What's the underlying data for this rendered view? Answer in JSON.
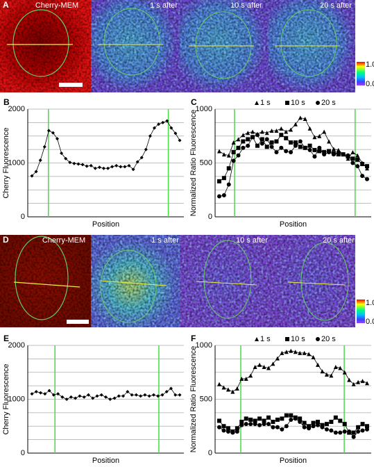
{
  "images": [
    {
      "label": "A",
      "captions": [
        "Cherry-MEM",
        "1 s after",
        "10 s after",
        "20 s after"
      ],
      "colorbar_labels": [
        "1.0",
        "0.0"
      ]
    },
    {
      "label": "D",
      "captions": [
        "Cherry-MEM",
        "1 s after",
        "10 s after",
        "20 s after"
      ],
      "colorbar_labels": [
        "1.0",
        "0.0"
      ]
    }
  ],
  "chart_data": [
    {
      "panel_label": "B",
      "type": "line",
      "ylabel": "Cherry Fluorescence",
      "xlabel": "Position",
      "ylim": [
        0,
        2000
      ],
      "yticks": [
        0,
        1000,
        2000
      ],
      "minor_yticks": [
        250,
        500,
        750,
        1250,
        1500,
        1750
      ],
      "grid": true,
      "boundary_positions": [
        3.9,
        32.3
      ],
      "boundary_color": "#44dd44",
      "series": [
        {
          "color": "#000000",
          "marker": "diamond",
          "values": [
            760,
            840,
            1050,
            1300,
            1600,
            1560,
            1450,
            1180,
            1080,
            1010,
            990,
            980,
            970,
            940,
            950,
            900,
            920,
            900,
            900,
            930,
            950,
            930,
            930,
            950,
            880,
            1020,
            1100,
            1250,
            1500,
            1650,
            1720,
            1750,
            1780,
            1650,
            1550,
            1420
          ]
        }
      ]
    },
    {
      "panel_label": "C",
      "type": "line",
      "ylabel": "Normalized Ratio Fluorescence",
      "xlabel": "Position",
      "ylim": [
        0,
        1000
      ],
      "yticks": [
        0,
        500,
        1000
      ],
      "minor_yticks": [
        125,
        250,
        375,
        625,
        750,
        875
      ],
      "grid": true,
      "legend": "top",
      "boundary_positions": [
        3.2,
        28.5
      ],
      "boundary_color": "#44dd44",
      "series": [
        {
          "name": "1 s",
          "color": "#000000",
          "marker": "triangle",
          "values": [
            610,
            580,
            570,
            690,
            720,
            760,
            780,
            790,
            770,
            790,
            780,
            800,
            800,
            820,
            790,
            810,
            860,
            920,
            910,
            820,
            740,
            750,
            790,
            700,
            630,
            620,
            580,
            540,
            600,
            570,
            500,
            450
          ]
        },
        {
          "name": "10 s",
          "color": "#000000",
          "marker": "square",
          "values": [
            330,
            360,
            450,
            600,
            640,
            700,
            720,
            740,
            660,
            720,
            650,
            690,
            700,
            760,
            730,
            690,
            690,
            650,
            640,
            660,
            620,
            610,
            600,
            610,
            590,
            580,
            580,
            560,
            540,
            530,
            490,
            470
          ]
        },
        {
          "name": "20 s",
          "color": "#000000",
          "marker": "circle",
          "values": [
            190,
            200,
            300,
            520,
            570,
            640,
            660,
            740,
            760,
            680,
            720,
            650,
            600,
            640,
            610,
            600,
            660,
            700,
            640,
            620,
            560,
            640,
            580,
            600,
            580,
            600,
            580,
            570,
            500,
            470,
            380,
            350
          ]
        }
      ]
    },
    {
      "panel_label": "E",
      "type": "line",
      "ylabel": "Cherry Fluorescence",
      "xlabel": "Position",
      "ylim": [
        0,
        2000
      ],
      "yticks": [
        0,
        1000,
        2000
      ],
      "minor_yticks": [
        250,
        500,
        750,
        1250,
        1500,
        1750
      ],
      "grid": true,
      "boundary_positions": [
        5.3,
        29.2
      ],
      "boundary_color": "#44dd44",
      "series": [
        {
          "color": "#000000",
          "marker": "diamond",
          "values": [
            1100,
            1140,
            1120,
            1100,
            1160,
            1080,
            1100,
            1040,
            1000,
            1040,
            1020,
            1060,
            1040,
            1080,
            1020,
            1060,
            1080,
            1040,
            1000,
            1020,
            1060,
            1060,
            1140,
            1080,
            1080,
            1060,
            1080,
            1060,
            1080,
            1060,
            1080,
            1140,
            1200,
            1080,
            1080
          ]
        }
      ]
    },
    {
      "panel_label": "F",
      "type": "line",
      "ylabel": "Normalized Ratio Fluorescence",
      "xlabel": "Position",
      "ylim": [
        0,
        1000
      ],
      "yticks": [
        0,
        500,
        1000
      ],
      "minor_yticks": [
        125,
        250,
        375,
        625,
        750,
        875
      ],
      "grid": true,
      "legend": "top",
      "boundary_positions": [
        4.8,
        27.9
      ],
      "boundary_color": "#44dd44",
      "series": [
        {
          "name": "1 s",
          "color": "#000000",
          "marker": "triangle",
          "values": [
            640,
            610,
            590,
            570,
            600,
            690,
            690,
            720,
            800,
            820,
            800,
            790,
            830,
            880,
            930,
            940,
            950,
            940,
            930,
            930,
            920,
            890,
            820,
            760,
            730,
            720,
            800,
            790,
            750,
            680,
            640,
            660,
            670,
            650
          ]
        },
        {
          "name": "10 s",
          "color": "#000000",
          "marker": "square",
          "values": [
            300,
            250,
            230,
            200,
            230,
            290,
            320,
            310,
            300,
            320,
            300,
            330,
            290,
            310,
            320,
            350,
            350,
            330,
            320,
            280,
            250,
            280,
            290,
            260,
            270,
            290,
            330,
            300,
            270,
            190,
            190,
            240,
            270,
            250
          ]
        },
        {
          "name": "20 s",
          "color": "#000000",
          "marker": "circle",
          "values": [
            240,
            210,
            200,
            190,
            200,
            260,
            270,
            270,
            270,
            260,
            270,
            270,
            240,
            240,
            220,
            250,
            310,
            320,
            290,
            240,
            230,
            250,
            260,
            240,
            220,
            210,
            190,
            190,
            200,
            200,
            150,
            200,
            210,
            220
          ]
        }
      ]
    }
  ]
}
